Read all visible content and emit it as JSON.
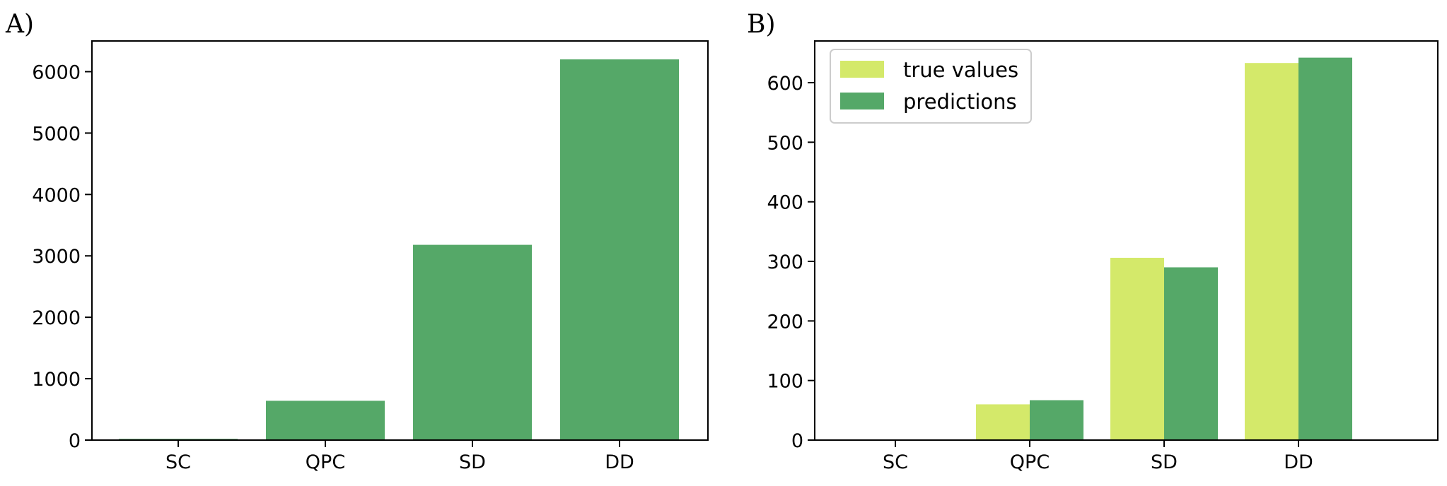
{
  "chart_data": [
    {
      "panel_label": "A)",
      "type": "bar",
      "categories": [
        "SC",
        "QPC",
        "SD",
        "DD"
      ],
      "series": [
        {
          "values": [
            20,
            640,
            3180,
            6200
          ],
          "color": "#55a868"
        }
      ],
      "ylim": [
        0,
        6500
      ],
      "yticks": [
        0,
        1000,
        2000,
        3000,
        4000,
        5000,
        6000
      ],
      "grid": false,
      "legend": null
    },
    {
      "panel_label": "B)",
      "type": "bar",
      "categories": [
        "SC",
        "QPC",
        "SD",
        "DD"
      ],
      "series": [
        {
          "name": "true values",
          "values": [
            0,
            60,
            306,
            633
          ],
          "color": "#d4e96a"
        },
        {
          "name": "predictions",
          "values": [
            0,
            67,
            290,
            642
          ],
          "color": "#55a868"
        }
      ],
      "ylim": [
        0,
        670
      ],
      "yticks": [
        0,
        100,
        200,
        300,
        400,
        500,
        600
      ],
      "grid": false,
      "legend": "top-left"
    }
  ]
}
